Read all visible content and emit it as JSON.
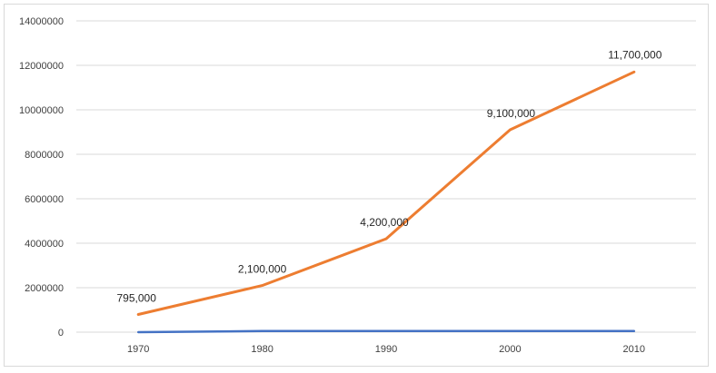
{
  "chart_data": {
    "type": "line",
    "x": [
      "1970",
      "1980",
      "1990",
      "2000",
      "2010"
    ],
    "ylim": [
      0,
      14000000
    ],
    "y_ticks": [
      "0",
      "2000000",
      "4000000",
      "6000000",
      "8000000",
      "10000000",
      "12000000",
      "14000000"
    ],
    "grid": true,
    "series": [
      {
        "values": [
          795000,
          2100000,
          4200000,
          9100000,
          11700000
        ],
        "data_labels": [
          "795,000",
          "2,100,000",
          "4,200,000",
          "9,100,000",
          "11,700,000"
        ],
        "color": "#ED7D31"
      },
      {
        "values": [
          0,
          50000,
          50000,
          50000,
          50000
        ],
        "color": "#4472C4"
      }
    ]
  }
}
